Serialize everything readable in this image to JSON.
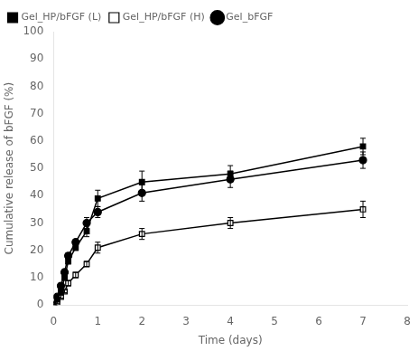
{
  "chart_data": {
    "type": "line",
    "x_label": "Time (days)",
    "y_label": "Cumulative release of bFGF (%)",
    "xlim": [
      0,
      8
    ],
    "ylim": [
      0,
      100
    ],
    "xticks": [
      0,
      1,
      2,
      3,
      4,
      5,
      6,
      7,
      8
    ],
    "yticks": [
      0,
      10,
      20,
      30,
      40,
      50,
      60,
      70,
      80,
      90,
      100
    ],
    "grid": false,
    "legend": "upper left",
    "series": [
      {
        "name": "Gel_HP/bFGF (L)",
        "marker": "square",
        "color": "#000000",
        "x": [
          0,
          0.083,
          0.167,
          0.25,
          0.333,
          0.5,
          0.75,
          1.0,
          2.0,
          4.0,
          7.0
        ],
        "values": [
          0,
          2,
          5,
          10,
          16,
          21,
          27,
          39,
          45,
          48,
          58
        ],
        "errors": [
          0,
          0.5,
          0.5,
          0.5,
          1,
          1,
          2,
          3,
          4,
          3,
          3
        ]
      },
      {
        "name": "Gel_HP/bFGF (H)",
        "marker": "open_square",
        "color": "#000000",
        "x": [
          0,
          0.083,
          0.167,
          0.25,
          0.333,
          0.5,
          0.75,
          1.0,
          2.0,
          4.0,
          7.0
        ],
        "values": [
          0,
          1,
          3,
          5,
          8,
          11,
          15,
          21,
          26,
          30,
          35
        ],
        "errors": [
          0,
          0.5,
          0.5,
          0.5,
          1,
          1,
          1,
          2,
          2,
          2,
          3
        ]
      },
      {
        "name": "Gel_bFGF",
        "marker": "circle",
        "color": "#000000",
        "x": [
          0,
          0.083,
          0.167,
          0.25,
          0.333,
          0.5,
          0.75,
          1.0,
          2.0,
          4.0,
          7.0
        ],
        "values": [
          0,
          3,
          7,
          12,
          18,
          23,
          30,
          34,
          41,
          46,
          53
        ],
        "errors": [
          0,
          0.5,
          0.5,
          1,
          1,
          1,
          2,
          2,
          3,
          3,
          3
        ]
      }
    ]
  }
}
